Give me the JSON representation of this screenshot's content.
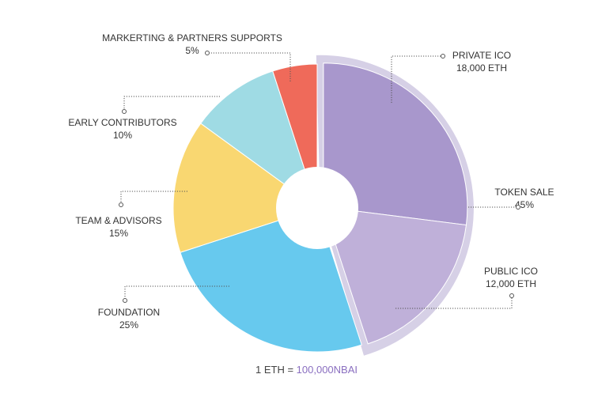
{
  "chart_data": {
    "type": "pie",
    "title": "",
    "slices": [
      {
        "name": "TOKEN SALE",
        "value": 45,
        "label": "45%",
        "color": "#a897cc",
        "sub": [
          {
            "name": "PRIVATE ICO",
            "amount": "18,000 ETH",
            "value": 27,
            "color": "#a897cc"
          },
          {
            "name": "PUBLIC ICO",
            "amount": "12,000 ETH",
            "value": 18,
            "color": "#bfb0d9"
          }
        ]
      },
      {
        "name": "FOUNDATION",
        "value": 25,
        "label": "25%",
        "color": "#67c9ee"
      },
      {
        "name": "TEAM & ADVISORS",
        "value": 15,
        "label": "15%",
        "color": "#f9d771"
      },
      {
        "name": "EARLY CONTRIBUTORS",
        "value": 10,
        "label": "10%",
        "color": "#9fdbe4"
      },
      {
        "name": "MARKERTING & PARTNERS SUPPORTS",
        "value": 5,
        "label": "5%",
        "color": "#ef6a5a"
      }
    ],
    "highlight_color": "#d6d0e6"
  },
  "footer": {
    "prefix": "1 ETH = ",
    "value": "100,000NBAI"
  }
}
